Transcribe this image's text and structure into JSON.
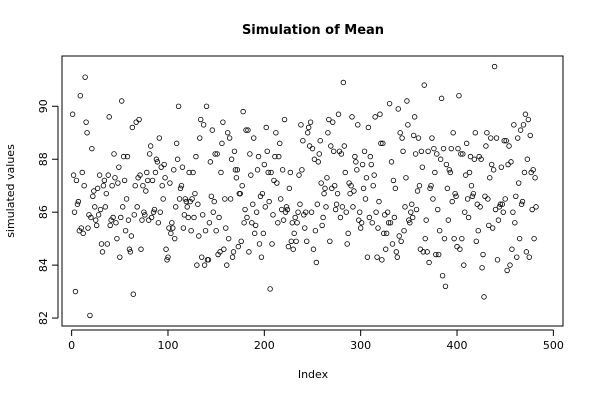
{
  "chart_data": {
    "type": "scatter",
    "title": "Simulation of Mean",
    "xlabel": "Index",
    "ylabel": "simulated values",
    "xlim": [
      -10,
      510
    ],
    "ylim": [
      81.7,
      91.9
    ],
    "x_ticks": [
      0,
      100,
      200,
      300,
      400,
      500
    ],
    "y_ticks": [
      82,
      84,
      86,
      88,
      90
    ],
    "grid": false,
    "marker": "open-circle",
    "series": [
      {
        "x_start": 1,
        "x_step": 1,
        "values": [
          89.7,
          87.4,
          86.0,
          83.0,
          87.2,
          86.3,
          86.4,
          85.3,
          90.4,
          85.4,
          87.5,
          85.2,
          87.0,
          91.1,
          89.4,
          89.0,
          85.4,
          85.9,
          82.1,
          85.8,
          88.4,
          86.6,
          86.8,
          86.2,
          85.7,
          85.5,
          86.9,
          85.9,
          87.4,
          86.1,
          84.8,
          84.5,
          87.0,
          87.2,
          86.2,
          86.7,
          84.8,
          87.4,
          89.6,
          85.5,
          85.7,
          87.0,
          85.8,
          88.2,
          87.3,
          85.6,
          85.0,
          87.1,
          87.7,
          84.3,
          85.8,
          90.2,
          86.2,
          88.1,
          87.2,
          85.3,
          86.5,
          88.1,
          85.7,
          84.6,
          84.5,
          85.1,
          89.2,
          82.9,
          85.9,
          87.0,
          89.4,
          86.2,
          87.3,
          89.5,
          87.4,
          84.6,
          85.7,
          87.0,
          86.0,
          85.9,
          86.8,
          87.5,
          87.2,
          85.7,
          88.2,
          88.5,
          85.8,
          87.2,
          86.0,
          86.1,
          87.5,
          88.0,
          87.9,
          85.6,
          88.8,
          86.0,
          87.7,
          87.0,
          86.5,
          87.8,
          87.3,
          84.6,
          84.2,
          84.3,
          85.4,
          87.1,
          85.2,
          85.6,
          85.4,
          87.6,
          85.0,
          86.2,
          88.6,
          88.0,
          90.0,
          86.5,
          86.9,
          87.0,
          87.7,
          85.4,
          85.9,
          86.5,
          86.4,
          86.2,
          85.8,
          87.5,
          86.4,
          85.3,
          86.5,
          87.5,
          85.8,
          86.7,
          88.1,
          84.0,
          86.3,
          85.1,
          88.8,
          89.5,
          84.3,
          85.9,
          89.3,
          84.0,
          85.3,
          90.0,
          84.2,
          84.2,
          85.6,
          87.9,
          86.6,
          89.1,
          86.0,
          86.4,
          88.2,
          85.3,
          88.2,
          84.4,
          85.8,
          84.5,
          87.5,
          88.6,
          89.4,
          84.6,
          86.5,
          85.4,
          84.0,
          89.0,
          85.0,
          88.8,
          86.5,
          88.0,
          84.3,
          84.5,
          88.3,
          87.6,
          87.3,
          87.6,
          84.7,
          86.7,
          86.7,
          84.9,
          87.0,
          89.8,
          85.6,
          86.1,
          89.1,
          85.8,
          89.1,
          84.5,
          88.2,
          87.4,
          85.6,
          86.3,
          88.8,
          85.2,
          85.5,
          86.0,
          87.6,
          88.1,
          84.8,
          86.6,
          84.3,
          86.7,
          85.2,
          87.8,
          86.2,
          89.2,
          88.3,
          87.5,
          86.4,
          83.1,
          87.5,
          84.8,
          85.9,
          87.2,
          88.1,
          89.0,
          87.1,
          85.6,
          88.1,
          88.6,
          86.5,
          86.1,
          87.6,
          85.7,
          89.5,
          86.0,
          86.2,
          86.1,
          84.7,
          86.9,
          87.5,
          84.9,
          85.6,
          84.6,
          85.2,
          85.8,
          84.9,
          85.6,
          86.0,
          87.4,
          86.3,
          89.3,
          87.6,
          88.7,
          85.9,
          85.4,
          86.0,
          84.9,
          89.0,
          89.2,
          88.5,
          89.4,
          86.0,
          88.4,
          84.6,
          88.0,
          85.3,
          84.1,
          86.3,
          87.9,
          88.2,
          88.7,
          87.1,
          85.5,
          85.8,
          86.7,
          86.9,
          86.2,
          87.3,
          89.0,
          89.5,
          84.9,
          88.5,
          86.9,
          89.4,
          88.3,
          87.0,
          86.1,
          86.3,
          86.7,
          89.7,
          88.3,
          85.8,
          88.2,
          86.2,
          90.9,
          88.5,
          87.5,
          86.0,
          84.8,
          85.2,
          87.1,
          86.7,
          87.0,
          89.6,
          86.2,
          86.8,
          88.1,
          87.9,
          87.6,
          89.3,
          85.7,
          86.0,
          85.4,
          85.6,
          87.8,
          86.9,
          88.3,
          86.5,
          87.3,
          84.3,
          89.2,
          85.8,
          88.1,
          87.8,
          85.6,
          87.0,
          87.4,
          89.6,
          86.0,
          84.3,
          85.4,
          86.4,
          89.7,
          88.6,
          84.2,
          88.6,
          85.2,
          85.9,
          84.6,
          85.2,
          86.0,
          85.6,
          90.1,
          85.6,
          87.9,
          84.8,
          87.2,
          85.8,
          86.9,
          84.5,
          84.3,
          89.9,
          85.1,
          89.0,
          84.9,
          88.8,
          88.3,
          85.3,
          86.2,
          87.3,
          90.2,
          89.3,
          85.7,
          85.6,
          86.0,
          86.3,
          85.8,
          88.9,
          89.6,
          88.2,
          86.1,
          86.8,
          88.8,
          87.0,
          84.6,
          88.3,
          87.7,
          84.5,
          90.8,
          85.0,
          85.7,
          84.5,
          88.3,
          84.1,
          86.9,
          87.0,
          88.8,
          86.5,
          88.4,
          87.5,
          84.4,
          88.2,
          86.1,
          84.4,
          85.3,
          88.0,
          90.3,
          83.6,
          88.4,
          85.0,
          83.2,
          87.8,
          86.9,
          85.7,
          87.6,
          87.5,
          88.4,
          86.4,
          89.0,
          85.0,
          86.7,
          86.6,
          84.7,
          88.4,
          90.4,
          84.6,
          88.2,
          85.0,
          88.2,
          84.0,
          86.0,
          87.4,
          88.6,
          86.5,
          85.8,
          87.5,
          88.1,
          87.0,
          86.6,
          86.7,
          88.0,
          89.0,
          84.9,
          86.3,
          85.3,
          88.1,
          86.2,
          88.0,
          83.9,
          84.4,
          82.8,
          86.6,
          88.5,
          89.0,
          86.5,
          85.5,
          87.3,
          88.8,
          87.8,
          85.4,
          87.6,
          91.5,
          86.1,
          88.8,
          84.2,
          85.7,
          86.2,
          86.3,
          87.7,
          86.3,
          86.0,
          88.7,
          86.5,
          88.7,
          83.8,
          87.8,
          88.5,
          84.0,
          87.9,
          84.6,
          86.0,
          89.3,
          85.6,
          86.6,
          84.3,
          88.8,
          87.1,
          85.0,
          89.1,
          86.3,
          86.4,
          89.3,
          87.5,
          89.7,
          84.5,
          88.0,
          89.5,
          84.3,
          88.9,
          87.5,
          86.1,
          87.6,
          85.0,
          87.3,
          86.2
        ]
      }
    ]
  }
}
